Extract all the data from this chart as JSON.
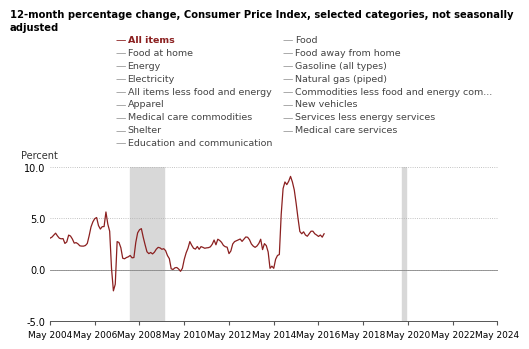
{
  "title_line1": "12-month percentage change, Consumer Price Index, selected categories, not seasonally",
  "title_line2": "adjusted",
  "ylabel": "Percent",
  "ylim": [
    -5.0,
    10.0
  ],
  "yticks": [
    -5.0,
    0.0,
    5.0,
    10.0
  ],
  "line_color": "#8B2020",
  "recession_color": "#d8d8d8",
  "background_color": "#ffffff",
  "legend_items_left": [
    {
      "label": "All items",
      "color": "#8B2020",
      "bold": true
    },
    {
      "label": "Food at home",
      "color": "#999999"
    },
    {
      "label": "Energy",
      "color": "#999999"
    },
    {
      "label": "Electricity",
      "color": "#999999"
    },
    {
      "label": "All items less food and energy",
      "color": "#999999"
    },
    {
      "label": "Apparel",
      "color": "#999999"
    },
    {
      "label": "Medical care commodities",
      "color": "#999999"
    },
    {
      "label": "Shelter",
      "color": "#999999"
    },
    {
      "label": "Education and communication",
      "color": "#999999"
    }
  ],
  "legend_items_right": [
    {
      "label": "Food",
      "color": "#999999"
    },
    {
      "label": "Food away from home",
      "color": "#999999"
    },
    {
      "label": "Gasoline (all types)",
      "color": "#999999"
    },
    {
      "label": "Natural gas (piped)",
      "color": "#999999"
    },
    {
      "label": "Commodities less food and energy com...",
      "color": "#999999"
    },
    {
      "label": "New vehicles",
      "color": "#999999"
    },
    {
      "label": "Services less energy services",
      "color": "#999999"
    },
    {
      "label": "Medical care services",
      "color": "#999999"
    }
  ],
  "cpi_data": [
    3.05,
    3.15,
    3.35,
    3.54,
    3.27,
    3.05,
    2.99,
    3.01,
    2.54,
    2.69,
    3.35,
    3.26,
    2.97,
    2.57,
    2.62,
    2.5,
    2.31,
    2.28,
    2.28,
    2.34,
    2.54,
    3.29,
    4.15,
    4.64,
    4.95,
    5.06,
    4.28,
    3.94,
    4.17,
    4.18,
    5.6,
    4.42,
    3.73,
    0.09,
    -2.07,
    -1.43,
    2.72,
    2.63,
    2.12,
    1.1,
    1.05,
    1.17,
    1.24,
    1.37,
    1.14,
    1.17,
    2.63,
    3.57,
    3.87,
    3.98,
    3.14,
    2.41,
    1.73,
    1.55,
    1.66,
    1.52,
    1.69,
    1.98,
    2.16,
    2.11,
    1.97,
    2.03,
    1.84,
    1.36,
    1.06,
    0.07,
    0.01,
    0.17,
    0.2,
    0.05,
    -0.17,
    0.12,
    0.99,
    1.62,
    2.07,
    2.72,
    2.36,
    2.07,
    1.99,
    2.24,
    1.97,
    2.23,
    2.16,
    2.07,
    2.11,
    2.13,
    2.21,
    2.46,
    2.87,
    2.41,
    2.95,
    2.83,
    2.65,
    2.35,
    2.22,
    2.18,
    1.55,
    1.81,
    2.49,
    2.72,
    2.8,
    2.87,
    2.97,
    2.74,
    2.95,
    3.17,
    3.14,
    2.9,
    2.49,
    2.28,
    2.16,
    2.29,
    2.54,
    2.95,
    1.94,
    2.52,
    2.33,
    1.71,
    0.12,
    0.33,
    0.12,
    1.0,
    1.37,
    1.46,
    5.37,
    7.87,
    8.52,
    8.26,
    8.58,
    9.06,
    8.52,
    7.75,
    6.45,
    5.0,
    3.7,
    3.48,
    3.67,
    3.36,
    3.24,
    3.48,
    3.73,
    3.73,
    3.48,
    3.36,
    3.22,
    3.36,
    3.15,
    3.48
  ],
  "start_year": 2004,
  "start_month": 5,
  "xtick_years": [
    2004,
    2006,
    2008,
    2010,
    2012,
    2014,
    2016,
    2018,
    2020,
    2022,
    2024
  ],
  "rec1_start": 2007.917,
  "rec1_end": 2009.417,
  "rec2_start": 2020.083,
  "rec2_end": 2020.25
}
